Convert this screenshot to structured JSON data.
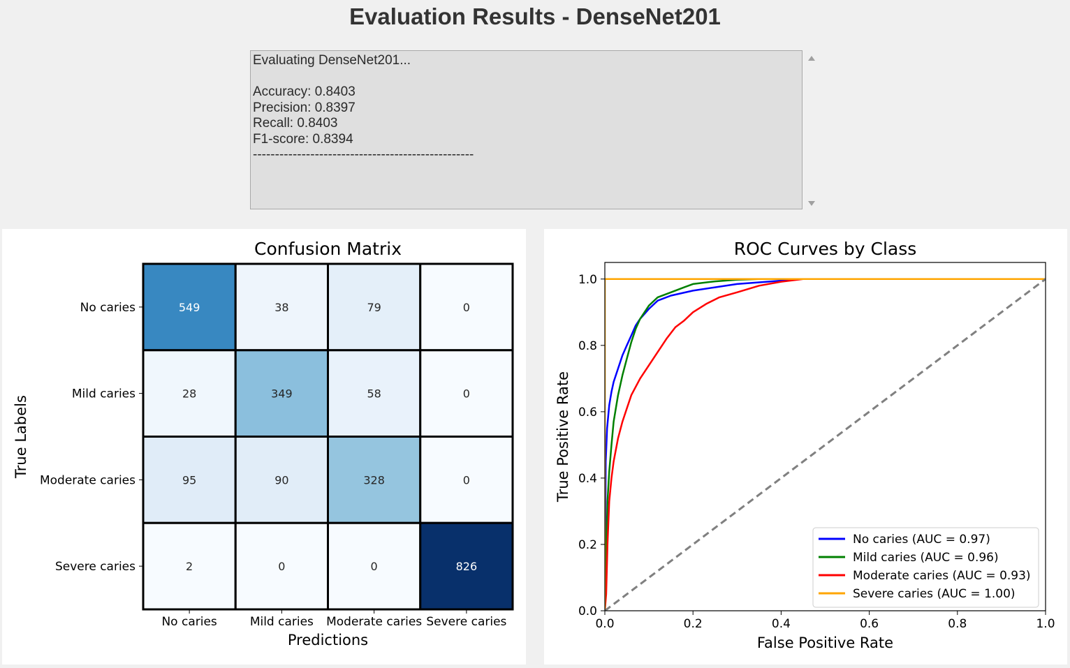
{
  "window": {
    "title": "Evaluation Results - DenseNet201"
  },
  "log": {
    "lines": [
      "Evaluating DenseNet201...",
      "",
      "Accuracy: 0.8403",
      "Precision: 0.8397",
      "Recall: 0.8403",
      "F1-score: 0.8394",
      "--------------------------------------------------"
    ]
  },
  "chart_data": [
    {
      "type": "heatmap",
      "title": "Confusion Matrix",
      "xlabel": "Predictions",
      "ylabel": "True Labels",
      "x_categories": [
        "No caries",
        "Mild caries",
        "Moderate caries",
        "Severe caries"
      ],
      "y_categories": [
        "No caries",
        "Mild caries",
        "Moderate caries",
        "Severe caries"
      ],
      "values": [
        [
          549,
          38,
          79,
          0
        ],
        [
          28,
          349,
          58,
          0
        ],
        [
          95,
          90,
          328,
          0
        ],
        [
          2,
          0,
          0,
          826
        ]
      ],
      "colormap": "Blues",
      "vmin": 0,
      "vmax": 826
    },
    {
      "type": "line",
      "title": "ROC Curves by Class",
      "xlabel": "False Positive Rate",
      "ylabel": "True Positive Rate",
      "xlim": [
        0,
        1
      ],
      "ylim": [
        0,
        1.05
      ],
      "x_ticks": [
        "0.0",
        "0.2",
        "0.4",
        "0.6",
        "0.8",
        "1.0"
      ],
      "y_ticks": [
        "0.0",
        "0.2",
        "0.4",
        "0.6",
        "0.8",
        "1.0"
      ],
      "legend_position": "lower-right",
      "series": [
        {
          "name": "No caries (AUC = 0.97)",
          "color": "#0000ff",
          "x": [
            0,
            0.002,
            0.005,
            0.01,
            0.015,
            0.02,
            0.03,
            0.04,
            0.05,
            0.06,
            0.07,
            0.08,
            0.1,
            0.12,
            0.15,
            0.2,
            0.25,
            0.3,
            0.35,
            0.4,
            0.44,
            1.0
          ],
          "y": [
            0,
            0.45,
            0.55,
            0.62,
            0.66,
            0.69,
            0.73,
            0.77,
            0.8,
            0.83,
            0.86,
            0.88,
            0.91,
            0.935,
            0.95,
            0.965,
            0.975,
            0.985,
            0.99,
            0.995,
            1.0,
            1.0
          ]
        },
        {
          "name": "Mild caries (AUC = 0.96)",
          "color": "#008000",
          "x": [
            0,
            0.003,
            0.006,
            0.01,
            0.015,
            0.02,
            0.03,
            0.04,
            0.05,
            0.06,
            0.07,
            0.08,
            0.1,
            0.12,
            0.15,
            0.18,
            0.2,
            0.25,
            0.3,
            0.35,
            1.0
          ],
          "y": [
            0,
            0.17,
            0.33,
            0.42,
            0.5,
            0.57,
            0.65,
            0.71,
            0.76,
            0.81,
            0.85,
            0.88,
            0.92,
            0.945,
            0.96,
            0.975,
            0.985,
            0.993,
            0.998,
            1.0,
            1.0
          ]
        },
        {
          "name": "Moderate caries (AUC = 0.93)",
          "color": "#ff0000",
          "x": [
            0,
            0.003,
            0.006,
            0.01,
            0.015,
            0.02,
            0.03,
            0.04,
            0.05,
            0.06,
            0.08,
            0.1,
            0.12,
            0.14,
            0.16,
            0.18,
            0.2,
            0.23,
            0.26,
            0.3,
            0.35,
            0.4,
            0.45,
            1.0
          ],
          "y": [
            0,
            0.05,
            0.2,
            0.33,
            0.4,
            0.45,
            0.52,
            0.57,
            0.61,
            0.65,
            0.7,
            0.74,
            0.78,
            0.82,
            0.855,
            0.875,
            0.9,
            0.925,
            0.945,
            0.96,
            0.98,
            0.992,
            1.0,
            1.0
          ]
        },
        {
          "name": "Severe caries (AUC = 1.00)",
          "color": "#ffa500",
          "x": [
            0,
            0,
            1.0
          ],
          "y": [
            0,
            1.0,
            1.0
          ]
        },
        {
          "name": "",
          "color": "#808080",
          "dashed": true,
          "x": [
            0,
            1
          ],
          "y": [
            0,
            1
          ]
        }
      ]
    }
  ]
}
